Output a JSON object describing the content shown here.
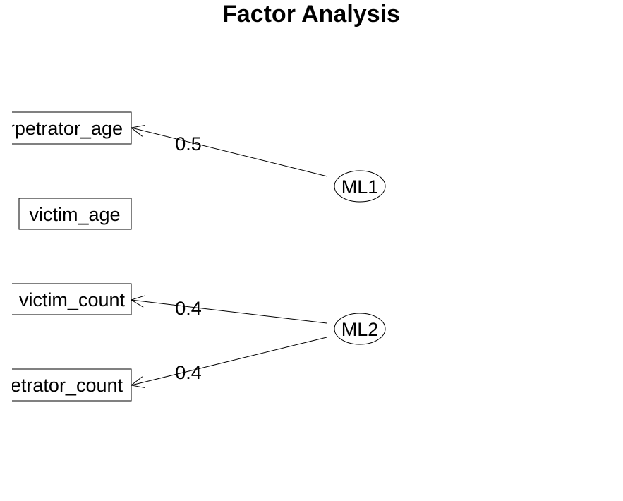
{
  "title": "Factor Analysis",
  "variables": [
    {
      "id": "perpetrator_age",
      "label": "perpetrator_age"
    },
    {
      "id": "victim_age",
      "label": "victim_age"
    },
    {
      "id": "victim_count",
      "label": "victim_count"
    },
    {
      "id": "perpetrator_count",
      "label": "perpetrator_count"
    }
  ],
  "factors": [
    {
      "id": "ML1",
      "label": "ML1"
    },
    {
      "id": "ML2",
      "label": "ML2"
    }
  ],
  "loadings": [
    {
      "factor": "ML1",
      "variable": "perpetrator_age",
      "label": "0.5"
    },
    {
      "factor": "ML2",
      "variable": "victim_count",
      "label": "0.4"
    },
    {
      "factor": "ML2",
      "variable": "perpetrator_count",
      "label": "0.4"
    }
  ]
}
